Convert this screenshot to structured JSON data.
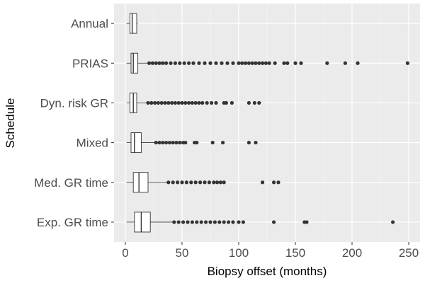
{
  "chart_data": {
    "type": "boxplot",
    "orientation": "horizontal",
    "title": "",
    "xlabel": "Biopsy offset (months)",
    "ylabel": "Schedule",
    "xlim": [
      -10,
      260
    ],
    "x_ticks": [
      0,
      50,
      100,
      150,
      200,
      250
    ],
    "grid": true,
    "categories": [
      "Annual",
      "PRIAS",
      "Dyn. risk GR",
      "Mixed",
      "Med. GR time",
      "Exp. GR time"
    ],
    "boxes": [
      {
        "category": "Annual",
        "whisker_low": 1,
        "q1": 4,
        "median": 6,
        "q3": 10,
        "whisker_high": 11,
        "outliers": []
      },
      {
        "category": "PRIAS",
        "whisker_low": 1,
        "q1": 5,
        "median": 7,
        "q3": 11,
        "whisker_high": 20,
        "outliers": [
          21,
          24,
          27,
          30,
          33,
          36,
          40,
          44,
          48,
          52,
          56,
          60,
          65,
          70,
          75,
          80,
          85,
          90,
          95,
          100,
          103,
          106,
          109,
          112,
          115,
          118,
          121,
          124,
          127,
          132,
          140,
          143,
          150,
          155,
          178,
          194,
          205,
          249
        ]
      },
      {
        "category": "Dyn. risk GR",
        "whisker_low": 1,
        "q1": 4,
        "median": 7,
        "q3": 10,
        "whisker_high": 19,
        "outliers": [
          20,
          23,
          26,
          29,
          32,
          35,
          38,
          41,
          44,
          47,
          50,
          53,
          56,
          59,
          62,
          65,
          68,
          72,
          76,
          80,
          87,
          89,
          94,
          109,
          114,
          118
        ]
      },
      {
        "category": "Mixed",
        "whisker_low": 1,
        "q1": 5,
        "median": 8,
        "q3": 14,
        "whisker_high": 26,
        "outliers": [
          27,
          30,
          33,
          36,
          39,
          42,
          45,
          48,
          51,
          53,
          61,
          63,
          77,
          86,
          109,
          115
        ]
      },
      {
        "category": "Med. GR time",
        "whisker_low": 1,
        "q1": 7,
        "median": 12,
        "q3": 20,
        "whisker_high": 37,
        "outliers": [
          38,
          42,
          46,
          50,
          54,
          58,
          62,
          66,
          70,
          74,
          78,
          81,
          84,
          87,
          121,
          131,
          135
        ]
      },
      {
        "category": "Exp. GR time",
        "whisker_low": 1,
        "q1": 8,
        "median": 14,
        "q3": 22,
        "whisker_high": 42,
        "outliers": [
          43,
          47,
          51,
          55,
          59,
          63,
          67,
          71,
          75,
          79,
          83,
          87,
          91,
          95,
          100,
          104,
          131,
          158,
          160,
          236
        ]
      }
    ],
    "colors": {
      "panel": "#ebebeb",
      "grid_major": "#ffffff",
      "box_fill": "#ffffff",
      "line": "#333333",
      "point": "#333333"
    }
  }
}
